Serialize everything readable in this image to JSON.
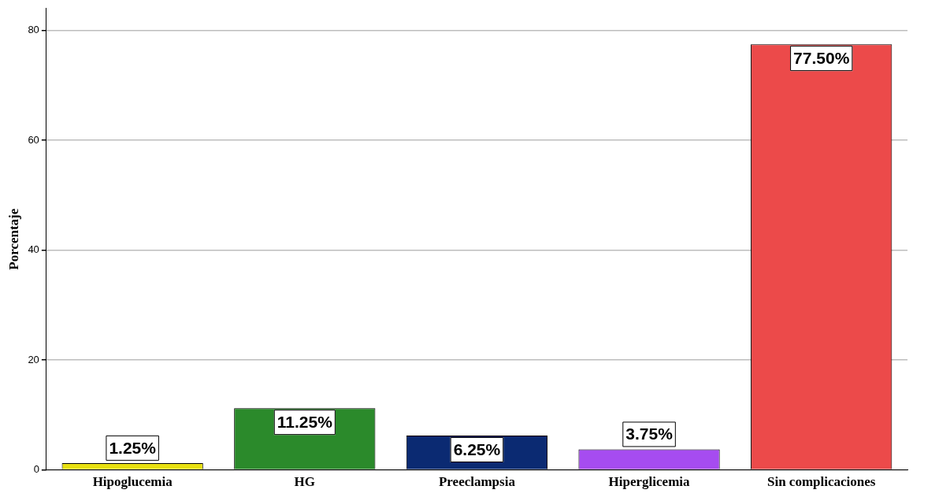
{
  "chart_data": {
    "type": "bar",
    "ylabel": "Porcentaje",
    "categories": [
      "Hipoglucemia",
      "HG",
      "Preeclampsia",
      "Hiperglicemia",
      "Sin complicaciones"
    ],
    "values": [
      1.25,
      11.25,
      6.25,
      3.75,
      77.5
    ],
    "colors": [
      "#e8e010",
      "#2b8a2b",
      "#0b2a72",
      "#a64cf0",
      "#ec4a4a"
    ],
    "value_labels": [
      "1.25%",
      "11.25%",
      "6.25%",
      "3.75%",
      "77.50%"
    ],
    "ylim": [
      0,
      84
    ],
    "yticks": [
      0,
      20,
      40,
      60,
      80
    ],
    "grid": "y",
    "legend": false
  }
}
